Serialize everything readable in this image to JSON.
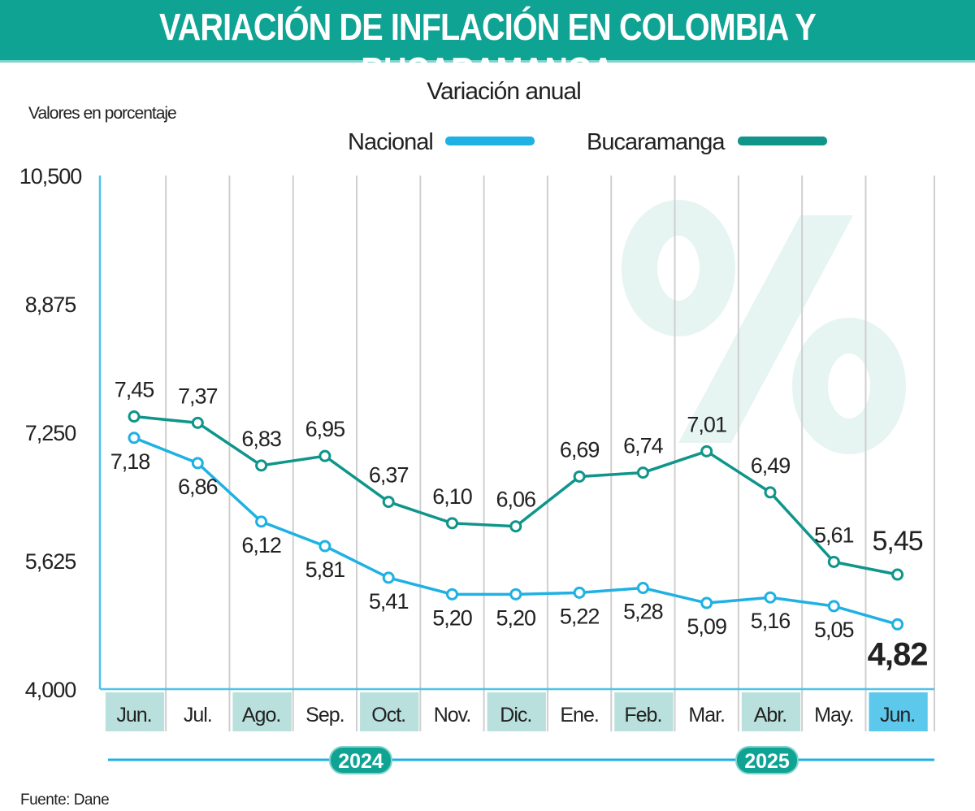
{
  "title": "VARIACIÓN DE INFLACIÓN EN COLOMBIA Y BUCARAMANGA",
  "source": "Fuente: Dane",
  "colors": {
    "banner": "#0fa394",
    "nacional": "#1fb1e3",
    "bucaramanga": "#0f9589",
    "shade": "#b9e0dc",
    "highlight": "#5bc8ec"
  },
  "chart_data": {
    "type": "line",
    "subtitle": "Variación anual",
    "ylabel": "Valores en porcentaje",
    "ylim": [
      4.0,
      10.5
    ],
    "yticks": [
      "10,500",
      "8,875",
      "7,250",
      "5,625",
      "4,000"
    ],
    "ytick_values": [
      10.5,
      8.875,
      7.25,
      5.625,
      4.0
    ],
    "categories": [
      "Jun.",
      "Jul.",
      "Ago.",
      "Sep.",
      "Oct.",
      "Nov.",
      "Dic.",
      "Ene.",
      "Feb.",
      "Mar.",
      "Abr.",
      "May.",
      "Jun."
    ],
    "years": [
      {
        "label": "2024"
      },
      {
        "label": "2025"
      }
    ],
    "legend": "top",
    "watermark": "%",
    "series": [
      {
        "name": "Nacional",
        "values": [
          7.18,
          6.86,
          6.12,
          5.81,
          5.41,
          5.2,
          5.2,
          5.22,
          5.28,
          5.09,
          5.16,
          5.05,
          4.82
        ],
        "labels": [
          "7,18",
          "6,86",
          "6,12",
          "5,81",
          "5,41",
          "5,20",
          "5,20",
          "5,22",
          "5,28",
          "5,09",
          "5,16",
          "5,05",
          "4,82"
        ]
      },
      {
        "name": "Bucaramanga",
        "values": [
          7.45,
          7.37,
          6.83,
          6.95,
          6.37,
          6.1,
          6.06,
          6.69,
          6.74,
          7.01,
          6.49,
          5.61,
          5.45
        ],
        "labels": [
          "7,45",
          "7,37",
          "6,83",
          "6,95",
          "6,37",
          "6,10",
          "6,06",
          "6,69",
          "6,74",
          "7,01",
          "6,49",
          "5,61",
          "5,45"
        ]
      }
    ]
  }
}
